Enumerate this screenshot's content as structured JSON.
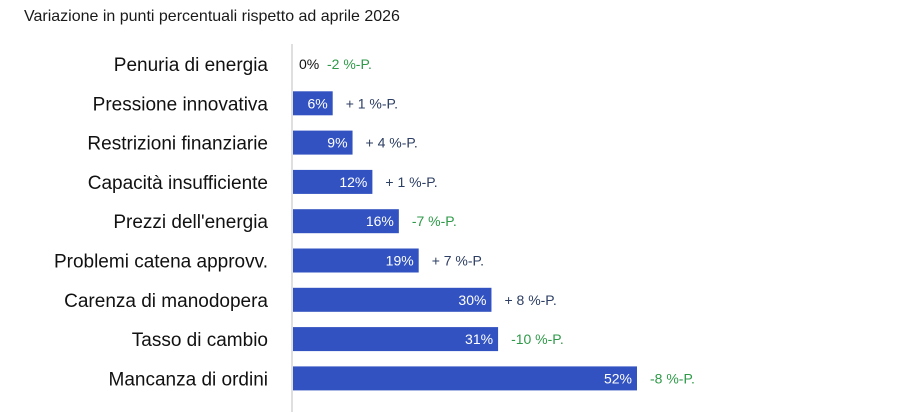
{
  "colors": {
    "bar": "#3152c0",
    "axis": "#bfbfbf",
    "value_label_inside": "#ffffff",
    "value_label_outside": "#111111",
    "change_positive": "#2c3e63",
    "change_negative": "#2e9a48"
  },
  "chart_data": {
    "type": "bar",
    "orientation": "horizontal",
    "title": "",
    "subtitle": "Variazione in punti percentuali rispetto ad aprile 2026",
    "xlabel": "",
    "ylabel": "",
    "xlim": [
      0,
      52
    ],
    "grid": false,
    "legend": "none",
    "categories": [
      "Penuria di energia",
      "Pressione innovativa",
      "Restrizioni finanziarie",
      "Capacità insufficiente",
      "Prezzi dell'energia",
      "Problemi catena approvv.",
      "Carenza di manodopera",
      "Tasso di cambio",
      "Mancanza di ordini"
    ],
    "values": [
      0,
      6,
      9,
      12,
      16,
      19,
      30,
      31,
      52
    ],
    "value_labels": [
      "0%",
      "6%",
      "9%",
      "12%",
      "16%",
      "19%",
      "30%",
      "31%",
      "52%"
    ],
    "change_values": [
      -2,
      1,
      4,
      1,
      -7,
      7,
      8,
      -10,
      -8
    ],
    "change_labels": [
      "-2 %-P.",
      "+ 1 %-P.",
      "+ 4 %-P.",
      "+ 1 %-P.",
      "-7 %-P.",
      "+ 7 %-P.",
      "+ 8 %-P.",
      "-10 %-P.",
      "-8 %-P."
    ]
  }
}
